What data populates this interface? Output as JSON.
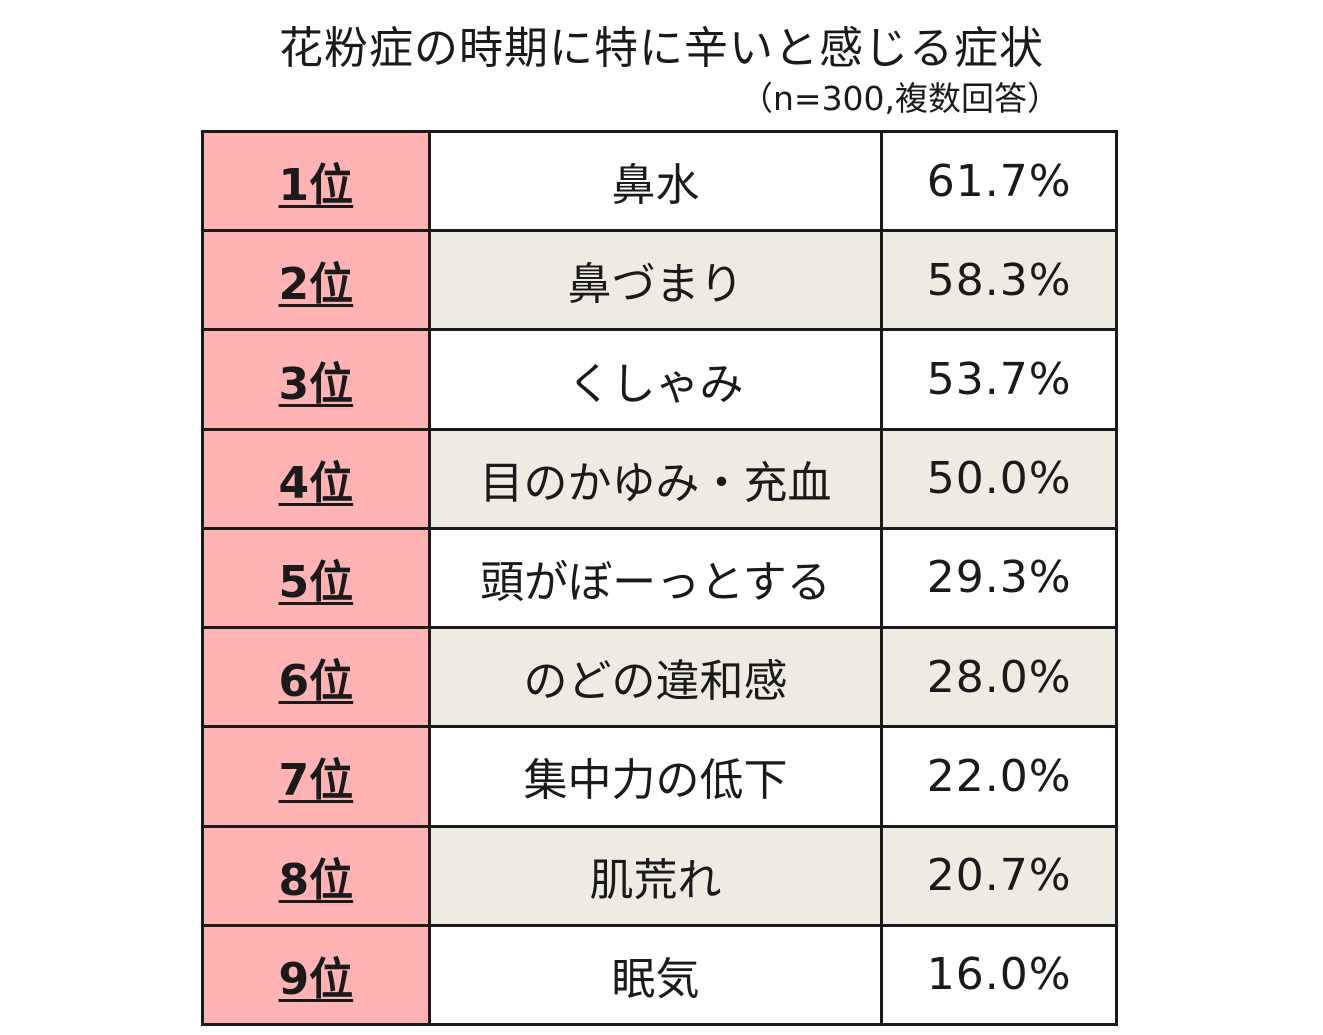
{
  "title": "花粉症の時期に特に辛いと感じる症状",
  "subtitle": "（n=300,複数回答）",
  "colors": {
    "rank_fill": "#ffb3b3",
    "alt_row_fill": "#eeebe2",
    "plain_row_fill": "#ffffff",
    "border": "#1a1a1a"
  },
  "chart_data": {
    "type": "table",
    "title": "花粉症の時期に特に辛いと感じる症状",
    "subtitle": "（n=300,複数回答）",
    "rows": [
      {
        "rank": "1位",
        "symptom": "鼻水",
        "percent": "61.7%",
        "value": 61.7
      },
      {
        "rank": "2位",
        "symptom": "鼻づまり",
        "percent": "58.3%",
        "value": 58.3
      },
      {
        "rank": "3位",
        "symptom": "くしゃみ",
        "percent": "53.7%",
        "value": 53.7
      },
      {
        "rank": "4位",
        "symptom": "目のかゆみ・充血",
        "percent": "50.0%",
        "value": 50.0
      },
      {
        "rank": "5位",
        "symptom": "頭がぼーっとする",
        "percent": "29.3%",
        "value": 29.3
      },
      {
        "rank": "6位",
        "symptom": "のどの違和感",
        "percent": "28.0%",
        "value": 28.0
      },
      {
        "rank": "7位",
        "symptom": "集中力の低下",
        "percent": "22.0%",
        "value": 22.0
      },
      {
        "rank": "8位",
        "symptom": "肌荒れ",
        "percent": "20.7%",
        "value": 20.7
      },
      {
        "rank": "9位",
        "symptom": "眠気",
        "percent": "16.0%",
        "value": 16.0
      }
    ]
  }
}
